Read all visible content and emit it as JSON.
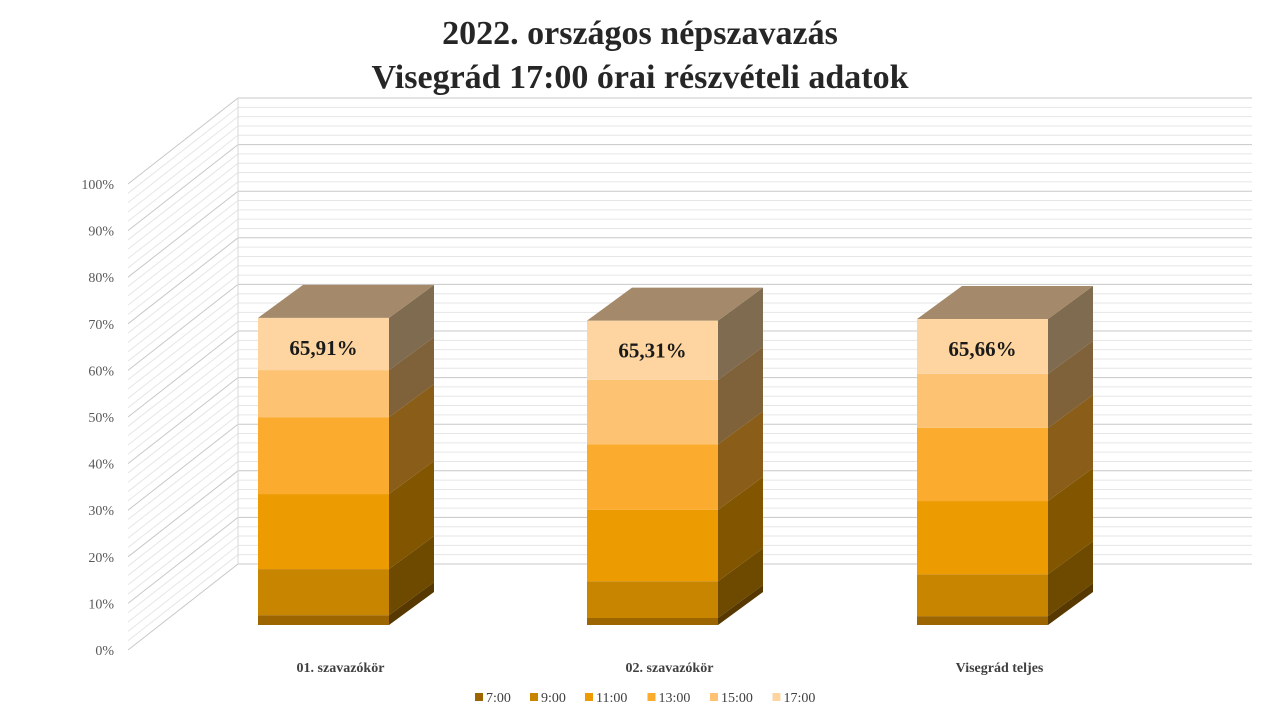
{
  "chart_data": {
    "type": "bar",
    "stacked": true,
    "three_d": true,
    "title_lines": [
      "2022. országos népszavazás",
      "Visegrád 17:00 órai részvételi adatok"
    ],
    "categories": [
      "01. szavazókör",
      "02. szavazókör",
      "Visegrád teljes"
    ],
    "series": [
      {
        "name": "7:00",
        "color": "#9c6500",
        "values": [
          2.1,
          1.5,
          1.9
        ]
      },
      {
        "name": "9:00",
        "color": "#c88500",
        "values": [
          9.9,
          7.9,
          9.0
        ]
      },
      {
        "name": "11:00",
        "color": "#ec9c00",
        "values": [
          16.1,
          15.3,
          15.7
        ]
      },
      {
        "name": "13:00",
        "color": "#fbab2e",
        "values": [
          16.5,
          14.1,
          15.7
        ]
      },
      {
        "name": "15:00",
        "color": "#fdc372",
        "values": [
          10.1,
          13.8,
          11.6
        ]
      },
      {
        "name": "17:00",
        "color": "#fed5a0",
        "values": [
          11.21,
          12.71,
          11.76
        ]
      }
    ],
    "data_labels": [
      "65,91%",
      "65,31%",
      "65,66%"
    ],
    "yticks": [
      "0%",
      "10%",
      "20%",
      "30%",
      "40%",
      "50%",
      "60%",
      "70%",
      "80%",
      "90%",
      "100%"
    ],
    "ylim": [
      0,
      100
    ],
    "grid": true,
    "legend_position": "bottom"
  }
}
